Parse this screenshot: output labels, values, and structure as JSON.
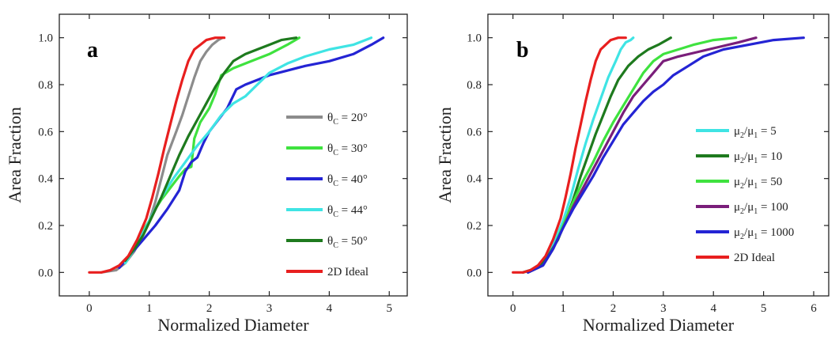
{
  "chart_data": [
    {
      "type": "line",
      "panel_label": "a",
      "xlabel": "Normalized Diameter",
      "ylabel": "Area Fraction",
      "xlim": [
        -0.5,
        5.3
      ],
      "ylim": [
        -0.1,
        1.1
      ],
      "xticks": [
        0,
        1,
        2,
        3,
        4,
        5
      ],
      "yticks": [
        0.0,
        0.2,
        0.4,
        0.6,
        0.8,
        1.0
      ],
      "ytick_labels": [
        "0.0",
        "0.2",
        "0.4",
        "0.6",
        "0.8",
        "1.0"
      ],
      "grid": false,
      "legend_position": "right",
      "series": [
        {
          "name": "θC = 20°",
          "legend_main": "θ",
          "legend_sub": "C",
          "legend_rest": " = 20°",
          "color": "#8c8c8c",
          "x": [
            0.2,
            0.45,
            0.6,
            0.75,
            0.9,
            1.0,
            1.1,
            1.2,
            1.3,
            1.45,
            1.55,
            1.65,
            1.75,
            1.85,
            1.95,
            2.05,
            2.15,
            2.22
          ],
          "y": [
            0.0,
            0.01,
            0.04,
            0.09,
            0.16,
            0.22,
            0.3,
            0.4,
            0.5,
            0.6,
            0.67,
            0.75,
            0.83,
            0.9,
            0.94,
            0.97,
            0.99,
            1.0
          ]
        },
        {
          "name": "θC = 30°",
          "legend_main": "θ",
          "legend_sub": "C",
          "legend_rest": " = 30°",
          "color": "#3fe23f",
          "x": [
            0.6,
            0.7,
            0.8,
            0.9,
            1.0,
            1.1,
            1.2,
            1.35,
            1.5,
            1.6,
            1.7,
            1.75,
            1.85,
            2.0,
            2.1,
            2.2,
            2.4,
            2.7,
            3.0,
            3.3,
            3.5
          ],
          "y": [
            0.04,
            0.09,
            0.13,
            0.18,
            0.22,
            0.27,
            0.31,
            0.36,
            0.41,
            0.44,
            0.45,
            0.57,
            0.64,
            0.7,
            0.76,
            0.84,
            0.87,
            0.9,
            0.93,
            0.97,
            1.0
          ]
        },
        {
          "name": "θC = 40°",
          "legend_main": "θ",
          "legend_sub": "C",
          "legend_rest": " = 40°",
          "color": "#2424d4",
          "x": [
            0.5,
            0.7,
            0.9,
            1.1,
            1.3,
            1.5,
            1.6,
            1.7,
            1.8,
            1.9,
            2.0,
            2.15,
            2.3,
            2.45,
            2.6,
            2.8,
            3.0,
            3.3,
            3.6,
            4.0,
            4.4,
            4.7,
            4.9
          ],
          "y": [
            0.02,
            0.08,
            0.14,
            0.2,
            0.27,
            0.35,
            0.43,
            0.47,
            0.49,
            0.55,
            0.6,
            0.65,
            0.7,
            0.78,
            0.8,
            0.82,
            0.84,
            0.86,
            0.88,
            0.9,
            0.93,
            0.97,
            1.0
          ]
        },
        {
          "name": "θC = 44°",
          "legend_main": "θ",
          "legend_sub": "C",
          "legend_rest": " = 44°",
          "color": "#3fe4e4",
          "x": [
            0.6,
            0.8,
            1.0,
            1.2,
            1.4,
            1.6,
            1.8,
            2.0,
            2.2,
            2.4,
            2.6,
            2.8,
            3.0,
            3.3,
            3.6,
            4.0,
            4.4,
            4.7
          ],
          "y": [
            0.04,
            0.12,
            0.22,
            0.32,
            0.4,
            0.47,
            0.54,
            0.6,
            0.67,
            0.72,
            0.75,
            0.8,
            0.85,
            0.89,
            0.92,
            0.95,
            0.97,
            1.0
          ]
        },
        {
          "name": "θC = 50°",
          "legend_main": "θ",
          "legend_sub": "C",
          "legend_rest": " = 50°",
          "color": "#1e7a1e",
          "x": [
            0.6,
            0.75,
            0.9,
            1.05,
            1.2,
            1.35,
            1.5,
            1.65,
            1.8,
            1.95,
            2.1,
            2.25,
            2.4,
            2.6,
            2.8,
            3.0,
            3.2,
            3.45
          ],
          "y": [
            0.05,
            0.1,
            0.16,
            0.24,
            0.32,
            0.41,
            0.5,
            0.58,
            0.65,
            0.72,
            0.79,
            0.85,
            0.9,
            0.93,
            0.95,
            0.97,
            0.99,
            1.0
          ]
        },
        {
          "name": "2D Ideal",
          "legend_main": "2D Ideal",
          "legend_sub": "",
          "legend_rest": "",
          "color": "#e81f1f",
          "x": [
            0.0,
            0.2,
            0.35,
            0.5,
            0.65,
            0.8,
            0.95,
            1.05,
            1.15,
            1.25,
            1.35,
            1.45,
            1.55,
            1.65,
            1.75,
            1.85,
            1.95,
            2.1,
            2.25
          ],
          "y": [
            0.0,
            0.0,
            0.01,
            0.03,
            0.07,
            0.14,
            0.23,
            0.32,
            0.42,
            0.53,
            0.63,
            0.73,
            0.82,
            0.9,
            0.95,
            0.97,
            0.99,
            1.0,
            1.0
          ]
        }
      ]
    },
    {
      "type": "line",
      "panel_label": "b",
      "xlabel": "Normalized Diameter",
      "ylabel": "Area Fraction",
      "xlim": [
        -0.5,
        6.3
      ],
      "ylim": [
        -0.1,
        1.1
      ],
      "xticks": [
        0,
        1,
        2,
        3,
        4,
        5,
        6
      ],
      "yticks": [
        0.0,
        0.2,
        0.4,
        0.6,
        0.8,
        1.0
      ],
      "ytick_labels": [
        "0.0",
        "0.2",
        "0.4",
        "0.6",
        "0.8",
        "1.0"
      ],
      "grid": false,
      "legend_position": "right",
      "series": [
        {
          "name": "μ2/μ1 = 5",
          "legend_main": "μ",
          "legend_sub": "2",
          "legend_rest": "/μ",
          "legend_sub2": "1",
          "legend_tail": " = 5",
          "color": "#3fe4e4",
          "x": [
            0.2,
            0.4,
            0.6,
            0.8,
            1.0,
            1.15,
            1.3,
            1.45,
            1.6,
            1.75,
            1.9,
            2.05,
            2.15,
            2.25,
            2.35,
            2.4
          ],
          "y": [
            0.0,
            0.01,
            0.04,
            0.12,
            0.22,
            0.32,
            0.44,
            0.55,
            0.65,
            0.74,
            0.83,
            0.9,
            0.95,
            0.98,
            0.99,
            1.0
          ]
        },
        {
          "name": "μ2/μ1 = 10",
          "legend_main": "μ",
          "legend_sub": "2",
          "legend_rest": "/μ",
          "legend_sub2": "1",
          "legend_tail": " = 10",
          "color": "#1e7a1e",
          "x": [
            0.2,
            0.5,
            0.7,
            0.9,
            1.05,
            1.2,
            1.35,
            1.5,
            1.65,
            1.8,
            1.95,
            2.1,
            2.3,
            2.5,
            2.7,
            2.9,
            3.15
          ],
          "y": [
            0.0,
            0.02,
            0.07,
            0.14,
            0.22,
            0.31,
            0.41,
            0.5,
            0.59,
            0.67,
            0.75,
            0.82,
            0.88,
            0.92,
            0.95,
            0.97,
            1.0
          ]
        },
        {
          "name": "μ2/μ1 = 50",
          "legend_main": "μ",
          "legend_sub": "2",
          "legend_rest": "/μ",
          "legend_sub2": "1",
          "legend_tail": " = 50",
          "color": "#3fe23f",
          "x": [
            0.3,
            0.6,
            0.8,
            1.0,
            1.2,
            1.4,
            1.6,
            1.8,
            2.0,
            2.2,
            2.4,
            2.6,
            2.8,
            3.0,
            3.3,
            3.6,
            4.0,
            4.45
          ],
          "y": [
            0.0,
            0.03,
            0.1,
            0.2,
            0.3,
            0.39,
            0.47,
            0.56,
            0.64,
            0.71,
            0.78,
            0.85,
            0.9,
            0.93,
            0.95,
            0.97,
            0.99,
            1.0
          ]
        },
        {
          "name": "μ2/μ1 = 100",
          "legend_main": "μ",
          "legend_sub": "2",
          "legend_rest": "/μ",
          "legend_sub2": "1",
          "legend_tail": " = 100",
          "color": "#7a1e7a",
          "x": [
            0.3,
            0.6,
            0.8,
            1.0,
            1.2,
            1.4,
            1.6,
            1.8,
            2.0,
            2.2,
            2.4,
            2.6,
            2.8,
            3.0,
            3.3,
            3.7,
            4.1,
            4.5,
            4.85
          ],
          "y": [
            0.0,
            0.03,
            0.1,
            0.19,
            0.28,
            0.36,
            0.44,
            0.52,
            0.6,
            0.68,
            0.75,
            0.8,
            0.85,
            0.9,
            0.92,
            0.94,
            0.96,
            0.98,
            1.0
          ]
        },
        {
          "name": "μ2/μ1 = 1000",
          "legend_main": "μ",
          "legend_sub": "2",
          "legend_rest": "/μ",
          "legend_sub2": "1",
          "legend_tail": " = 1000",
          "color": "#2424d4",
          "x": [
            0.3,
            0.6,
            0.8,
            1.0,
            1.2,
            1.4,
            1.6,
            1.8,
            2.0,
            2.2,
            2.4,
            2.6,
            2.8,
            3.0,
            3.2,
            3.5,
            3.8,
            4.2,
            4.7,
            5.2,
            5.8
          ],
          "y": [
            0.0,
            0.03,
            0.1,
            0.19,
            0.27,
            0.34,
            0.41,
            0.49,
            0.56,
            0.63,
            0.68,
            0.73,
            0.77,
            0.8,
            0.84,
            0.88,
            0.92,
            0.95,
            0.97,
            0.99,
            1.0
          ]
        },
        {
          "name": "2D Ideal",
          "legend_main": "2D Ideal",
          "legend_sub": "",
          "legend_rest": "",
          "legend_sub2": "",
          "legend_tail": "",
          "color": "#e81f1f",
          "x": [
            0.0,
            0.2,
            0.35,
            0.5,
            0.65,
            0.8,
            0.95,
            1.05,
            1.15,
            1.25,
            1.35,
            1.45,
            1.55,
            1.65,
            1.75,
            1.85,
            1.95,
            2.1,
            2.25
          ],
          "y": [
            0.0,
            0.0,
            0.01,
            0.03,
            0.07,
            0.14,
            0.23,
            0.32,
            0.42,
            0.53,
            0.63,
            0.73,
            0.82,
            0.9,
            0.95,
            0.97,
            0.99,
            1.0,
            1.0
          ]
        }
      ]
    }
  ]
}
